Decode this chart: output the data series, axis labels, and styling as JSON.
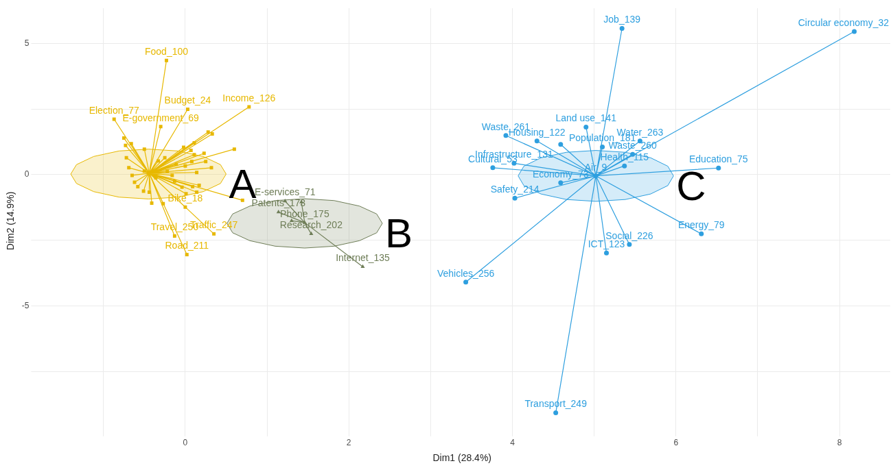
{
  "chart_data": {
    "type": "scatter",
    "xlabel": "Dim1 (28.4%)",
    "ylabel": "Dim2 (14.9%)",
    "xlim": [
      -1.85,
      8.62
    ],
    "ylim": [
      -9.87,
      6.34
    ],
    "xticks": [
      {
        "value": -1,
        "label": null
      },
      0,
      {
        "value": 1,
        "label": null
      },
      2,
      {
        "value": 3,
        "label": null
      },
      4,
      {
        "value": 5,
        "label": null
      },
      6,
      {
        "value": 7,
        "label": null
      },
      8
    ],
    "yticks": [
      {
        "value": -7.5,
        "label": null
      },
      -5,
      {
        "value": -2.5,
        "label": null
      },
      0,
      {
        "value": 2.5,
        "label": null
      },
      5
    ],
    "grid": true,
    "legend": false,
    "series": [
      {
        "type": "area",
        "name": "A",
        "color": "#e7b800",
        "x": [
          0.5,
          0.43,
          0.22,
          -0.09,
          -0.45,
          -0.81,
          -1.12,
          -1.33,
          -1.4,
          -1.33,
          -1.12,
          -0.81,
          -0.45,
          -0.09,
          0.22,
          0.43,
          0.5
        ],
        "values": [
          0.02,
          0.38,
          0.69,
          0.9,
          0.97,
          0.9,
          0.69,
          0.38,
          0.02,
          -0.34,
          -0.65,
          -0.86,
          -0.93,
          -0.86,
          -0.65,
          -0.34,
          0.02
        ]
      },
      {
        "type": "area",
        "name": "B",
        "color": "#6e7d57",
        "x": [
          2.41,
          2.34,
          2.13,
          1.82,
          1.46,
          1.1,
          0.79,
          0.58,
          0.51,
          0.58,
          0.79,
          1.1,
          1.46,
          1.82,
          2.13,
          2.34,
          2.41
        ],
        "values": [
          -1.86,
          -1.5,
          -1.2,
          -0.99,
          -0.92,
          -0.99,
          -1.2,
          -1.5,
          -1.86,
          -2.22,
          -2.52,
          -2.73,
          -2.8,
          -2.73,
          -2.52,
          -2.22,
          -1.86
        ]
      },
      {
        "type": "area",
        "name": "C",
        "color": "#2e9fdf",
        "x": [
          5.97,
          5.9,
          5.69,
          5.38,
          5.02,
          4.66,
          4.35,
          4.14,
          4.07,
          4.14,
          4.35,
          4.66,
          5.02,
          5.38,
          5.69,
          5.9,
          5.97
        ],
        "values": [
          -0.05,
          0.32,
          0.64,
          0.85,
          0.92,
          0.85,
          0.64,
          0.32,
          -0.05,
          -0.42,
          -0.74,
          -0.95,
          -1.02,
          -0.95,
          -0.74,
          -0.42,
          -0.05
        ]
      },
      {
        "type": "line",
        "color": "#e7b800",
        "marker": "none",
        "x": [
          -0.44,
          -0.23,
          -0.44,
          0.03,
          -0.44,
          0.78,
          -0.44,
          -0.87,
          -0.44,
          -0.3,
          -0.44,
          0.0,
          -0.44,
          0.35,
          -0.44,
          -0.13,
          -0.44,
          0.02,
          -0.44,
          -0.75,
          -0.44,
          -0.66,
          -0.44,
          -0.73,
          -0.44,
          -0.5,
          -0.44,
          0.28,
          -0.44,
          0.33,
          -0.44,
          0.11,
          -0.44,
          -0.02,
          -0.44,
          0.6,
          -0.44,
          0.23,
          -0.44,
          0.07,
          -0.44,
          0.11,
          -0.44,
          0.25,
          -0.44,
          0.32,
          -0.44,
          0.08,
          -0.44,
          0.0,
          -0.44,
          0.14,
          -0.44,
          -0.16,
          -0.44,
          0.17,
          -0.44,
          0.14,
          -0.44,
          0.01,
          -0.44,
          0.09,
          -0.44,
          -0.04,
          -0.44,
          0.7,
          -0.44,
          -0.41,
          -0.44,
          -0.27,
          -0.44,
          -0.44,
          -0.44,
          -0.51,
          -0.44,
          -0.13,
          -0.44,
          -0.11,
          -0.44,
          -0.25,
          -0.44,
          -0.33,
          -0.44,
          -0.72,
          -0.44,
          -0.69,
          -0.44,
          -0.65,
          -0.44,
          -0.62,
          -0.44,
          -0.58,
          -0.44,
          -0.36,
          -0.44,
          -0.5,
          -0.44,
          -0.22
        ],
        "values": [
          0.05,
          4.35,
          0.05,
          2.49,
          0.05,
          2.58,
          0.05,
          2.11,
          0.05,
          1.83,
          0.05,
          -1.24,
          0.05,
          -2.26,
          0.05,
          -2.34,
          0.05,
          -3.05,
          0.05,
          1.39,
          0.05,
          1.18,
          0.05,
          1.11,
          0.05,
          0.97,
          0.05,
          1.62,
          0.05,
          1.55,
          0.05,
          1.21,
          0.05,
          1.04,
          0.05,
          0.97,
          0.05,
          0.81,
          0.05,
          0.92,
          0.05,
          0.76,
          0.05,
          0.5,
          0.05,
          0.26,
          0.05,
          0.5,
          0.05,
          0.33,
          0.05,
          0.08,
          0.05,
          -0.03,
          0.05,
          -0.41,
          0.05,
          -0.67,
          0.05,
          -0.73,
          0.05,
          -0.46,
          0.05,
          -0.48,
          0.05,
          -0.98,
          0.05,
          -1.09,
          0.05,
          -1.11,
          0.05,
          -0.67,
          0.05,
          -0.63,
          0.05,
          -0.25,
          0.05,
          0.39,
          0.05,
          0.64,
          0.05,
          0.52,
          0.05,
          0.64,
          0.05,
          0.26,
          0.05,
          -0.03,
          0.05,
          -0.29,
          0.05,
          -0.46,
          0.05,
          -0.12,
          0.05,
          0.13,
          0.05,
          0.13
        ]
      },
      {
        "type": "line",
        "color": "#6e7d57",
        "marker": "none",
        "x": [
          1.46,
          1.22,
          1.46,
          1.42,
          1.46,
          1.14,
          1.46,
          1.3,
          1.46,
          1.54,
          1.46,
          2.17
        ],
        "values": [
          -1.83,
          -1.01,
          -1.83,
          -1.05,
          -1.83,
          -1.43,
          -1.83,
          -1.76,
          -1.83,
          -2.26,
          -1.83,
          -3.51
        ]
      },
      {
        "type": "line",
        "color": "#2e9fdf",
        "marker": "none",
        "x": [
          5.02,
          3.92,
          5.02,
          4.3,
          5.02,
          4.9,
          5.02,
          4.59,
          5.02,
          5.1,
          5.02,
          5.47,
          5.02,
          5.56,
          5.02,
          5.37,
          5.02,
          6.52,
          5.02,
          4.02,
          5.02,
          3.76,
          5.02,
          4.59,
          5.02,
          4.03,
          5.02,
          5.43,
          5.02,
          5.15,
          5.02,
          6.31,
          5.02,
          3.43,
          5.02,
          4.53,
          5.02,
          5.34,
          5.02,
          8.18
        ],
        "values": [
          -0.05,
          1.49,
          -0.05,
          1.28,
          -0.05,
          1.81,
          -0.05,
          1.15,
          -0.05,
          1.05,
          -0.05,
          0.77,
          -0.05,
          1.28,
          -0.05,
          0.33,
          -0.05,
          0.25,
          -0.05,
          0.43,
          -0.05,
          0.26,
          -0.05,
          -0.31,
          -0.05,
          -0.9,
          -0.05,
          -2.66,
          -0.05,
          -2.99,
          -0.05,
          -2.26,
          -0.05,
          -4.1,
          -0.05,
          -9.08,
          -0.05,
          5.57,
          -0.05,
          5.45
        ]
      },
      {
        "color": "#e7b800",
        "marker": "square",
        "x": [
          -0.23,
          0.03,
          0.78,
          -0.87,
          -0.3,
          0.0,
          0.35,
          -0.13,
          0.02,
          -0.75,
          -0.66,
          -0.73,
          -0.5,
          0.28,
          0.33,
          0.11,
          -0.02,
          0.6,
          0.23,
          0.07,
          0.11,
          0.25,
          0.32,
          0.08,
          0.0,
          0.14,
          -0.16,
          0.17,
          0.14,
          0.01,
          0.09,
          -0.04,
          0.7,
          -0.41,
          -0.27,
          -0.44,
          -0.51,
          -0.13,
          -0.11,
          -0.25,
          -0.33,
          -0.72,
          -0.69,
          -0.65,
          -0.62,
          -0.58,
          -0.36,
          -0.5,
          -0.22
        ],
        "values": [
          4.35,
          2.49,
          2.58,
          2.11,
          1.83,
          -1.24,
          -2.26,
          -2.34,
          -3.05,
          1.39,
          1.18,
          1.11,
          0.97,
          1.62,
          1.55,
          1.21,
          1.04,
          0.97,
          0.81,
          0.92,
          0.76,
          0.5,
          0.26,
          0.5,
          0.33,
          0.08,
          -0.03,
          -0.41,
          -0.67,
          -0.73,
          -0.46,
          -0.48,
          -0.98,
          -1.09,
          -1.11,
          -0.67,
          -0.63,
          -0.25,
          0.39,
          0.64,
          0.52,
          0.64,
          0.26,
          -0.03,
          -0.29,
          -0.46,
          -0.12,
          0.13,
          0.13
        ]
      },
      {
        "color": "#6e7d57",
        "marker": "triangle",
        "x": [
          1.46,
          1.22,
          1.42,
          1.14,
          1.3,
          1.54,
          2.17
        ],
        "values": [
          -1.83,
          -1.01,
          -1.05,
          -1.43,
          -1.76,
          -2.26,
          -3.51
        ]
      },
      {
        "color": "#2e9fdf",
        "marker": "circle",
        "x": [
          5.02,
          3.92,
          4.3,
          4.9,
          4.59,
          5.1,
          5.47,
          5.56,
          5.37,
          6.52,
          4.02,
          3.76,
          4.59,
          4.03,
          5.43,
          5.15,
          6.31,
          3.43,
          4.53,
          5.34,
          8.18
        ],
        "values": [
          -0.05,
          1.49,
          1.28,
          1.81,
          1.15,
          1.05,
          0.77,
          1.28,
          0.33,
          0.25,
          0.43,
          0.26,
          -0.31,
          -0.9,
          -2.66,
          -2.99,
          -2.26,
          -4.1,
          -9.08,
          5.57,
          5.45
        ]
      }
    ],
    "annotations": [
      {
        "text": "Food_100",
        "x": -0.23,
        "y": 4.35
      },
      {
        "text": "Budget_24",
        "x": 0.03,
        "y": 2.49
      },
      {
        "text": "Income_126",
        "x": 0.78,
        "y": 2.58
      },
      {
        "text": "Election_77",
        "x": -0.87,
        "y": 2.11
      },
      {
        "text": "E-government_69",
        "x": -0.3,
        "y": 1.83
      },
      {
        "text": "Bike_18",
        "x": 0.0,
        "y": -1.24
      },
      {
        "text": "Traffic_247",
        "x": 0.35,
        "y": -2.26
      },
      {
        "text": "Travel_250",
        "x": -0.13,
        "y": -2.34
      },
      {
        "text": "Road_211",
        "x": 0.02,
        "y": -3.05
      },
      {
        "text": "Phone_175",
        "x": 1.46,
        "y": -1.83
      },
      {
        "text": "E-services_71",
        "x": 1.22,
        "y": -1.01
      },
      {
        "text": "Patents_173",
        "x": 1.14,
        "y": -1.43
      },
      {
        "text": "Research_202",
        "x": 1.54,
        "y": -2.26
      },
      {
        "text": "Internet_135",
        "x": 2.17,
        "y": -3.51
      },
      {
        "text": "Air_9",
        "x": 5.02,
        "y": -0.05
      },
      {
        "text": "Waste_261",
        "x": 3.92,
        "y": 1.49
      },
      {
        "text": "Housing_122",
        "x": 4.3,
        "y": 1.28
      },
      {
        "text": "Land use_141",
        "x": 4.9,
        "y": 1.81
      },
      {
        "text": "Population_181",
        "x": 5.1,
        "y": 1.05
      },
      {
        "text": "Waste_260",
        "x": 5.47,
        "y": 0.77
      },
      {
        "text": "Water_263",
        "x": 5.56,
        "y": 1.28
      },
      {
        "text": "Health_115",
        "x": 5.37,
        "y": 0.33
      },
      {
        "text": "Education_75",
        "x": 6.52,
        "y": 0.25
      },
      {
        "text": "Infrastructure_131",
        "x": 4.02,
        "y": 0.43
      },
      {
        "text": "Cultural_53",
        "x": 3.76,
        "y": 0.26
      },
      {
        "text": "Economy_73",
        "x": 4.59,
        "y": -0.31
      },
      {
        "text": "Safety_214",
        "x": 4.03,
        "y": -0.9
      },
      {
        "text": "Social_226",
        "x": 5.43,
        "y": -2.66
      },
      {
        "text": "ICT_123",
        "x": 5.15,
        "y": -2.99
      },
      {
        "text": "Energy_79",
        "x": 6.31,
        "y": -2.26
      },
      {
        "text": "Vehicles_256",
        "x": 3.43,
        "y": -4.1
      },
      {
        "text": "Transport_249",
        "x": 4.53,
        "y": -9.08
      },
      {
        "text": "Job_139",
        "x": 5.34,
        "y": 5.57
      },
      {
        "text": "Circular economy_32",
        "x": 8.18,
        "y": 5.45
      }
    ]
  }
}
